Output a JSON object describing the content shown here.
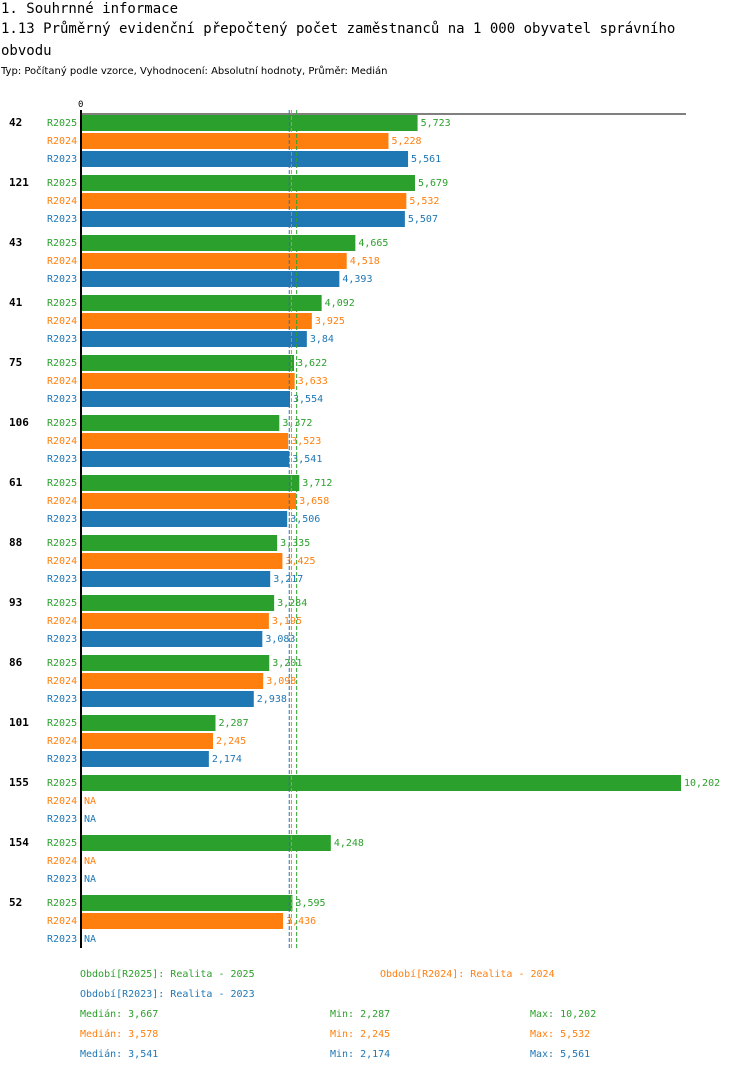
{
  "header": {
    "section": "1. Souhrnné informace",
    "title_line1": "1.13 Průměrný evidenční přepočtený počet zaměstnanců na 1 000 obyvatel správního",
    "title_line2": "obvodu",
    "meta": "Typ: Počítaný podle vzorce, Vyhodnocení: Absolutní hodnoty, Průměr: Medián"
  },
  "chart_data": {
    "type": "bar",
    "orientation": "horizontal",
    "axis_zero_label": "0",
    "x_range": [
      0,
      10.202
    ],
    "colors": {
      "R2025": "#2ca02c",
      "R2024": "#ff7f0e",
      "R2023": "#1f77b4"
    },
    "series_names": [
      "R2025",
      "R2024",
      "R2023"
    ],
    "groups": [
      {
        "label": "42",
        "values": [
          5.723,
          5.228,
          5.561
        ],
        "value_labels": [
          "5,723",
          "5,228",
          "5,561"
        ]
      },
      {
        "label": "121",
        "values": [
          5.679,
          5.532,
          5.507
        ],
        "value_labels": [
          "5,679",
          "5,532",
          "5,507"
        ]
      },
      {
        "label": "43",
        "values": [
          4.665,
          4.518,
          4.393
        ],
        "value_labels": [
          "4,665",
          "4,518",
          "4,393"
        ]
      },
      {
        "label": "41",
        "values": [
          4.092,
          3.925,
          3.84
        ],
        "value_labels": [
          "4,092",
          "3,925",
          "3,84"
        ]
      },
      {
        "label": "75",
        "values": [
          3.622,
          3.633,
          3.554
        ],
        "value_labels": [
          "3,622",
          "3,633",
          "3,554"
        ]
      },
      {
        "label": "106",
        "values": [
          3.372,
          3.523,
          3.541
        ],
        "value_labels": [
          "3,372",
          "3,523",
          "3,541"
        ]
      },
      {
        "label": "61",
        "values": [
          3.712,
          3.658,
          3.506
        ],
        "value_labels": [
          "3,712",
          "3,658",
          "3,506"
        ]
      },
      {
        "label": "88",
        "values": [
          3.335,
          3.425,
          3.217
        ],
        "value_labels": [
          "3,335",
          "3,425",
          "3,217"
        ]
      },
      {
        "label": "93",
        "values": [
          3.284,
          3.195,
          3.083
        ],
        "value_labels": [
          "3,284",
          "3,195",
          "3,083"
        ]
      },
      {
        "label": "86",
        "values": [
          3.201,
          3.098,
          2.938
        ],
        "value_labels": [
          "3,201",
          "3,098",
          "2,938"
        ]
      },
      {
        "label": "101",
        "values": [
          2.287,
          2.245,
          2.174
        ],
        "value_labels": [
          "2,287",
          "2,245",
          "2,174"
        ]
      },
      {
        "label": "155",
        "values": [
          10.202,
          null,
          null
        ],
        "value_labels": [
          "10,202",
          "NA",
          "NA"
        ]
      },
      {
        "label": "154",
        "values": [
          4.248,
          null,
          null
        ],
        "value_labels": [
          "4,248",
          "NA",
          "NA"
        ]
      },
      {
        "label": "52",
        "values": [
          3.595,
          3.436,
          null
        ],
        "value_labels": [
          "3,595",
          "3,436",
          "NA"
        ]
      }
    ],
    "medians": {
      "R2025": 3.667,
      "R2024": 3.578,
      "R2023": 3.541
    }
  },
  "legend": {
    "period_2025": "Období[R2025]: Realita - 2025",
    "period_2024": "Období[R2024]: Realita - 2024",
    "period_2023": "Období[R2023]: Realita - 2023",
    "stats": [
      {
        "median": "Medián: 3,667",
        "min": "Min: 2,287",
        "max": "Max: 10,202"
      },
      {
        "median": "Medián: 3,578",
        "min": "Min: 2,245",
        "max": "Max: 5,532"
      },
      {
        "median": "Medián: 3,541",
        "min": "Min: 2,174",
        "max": "Max: 5,561"
      }
    ]
  }
}
